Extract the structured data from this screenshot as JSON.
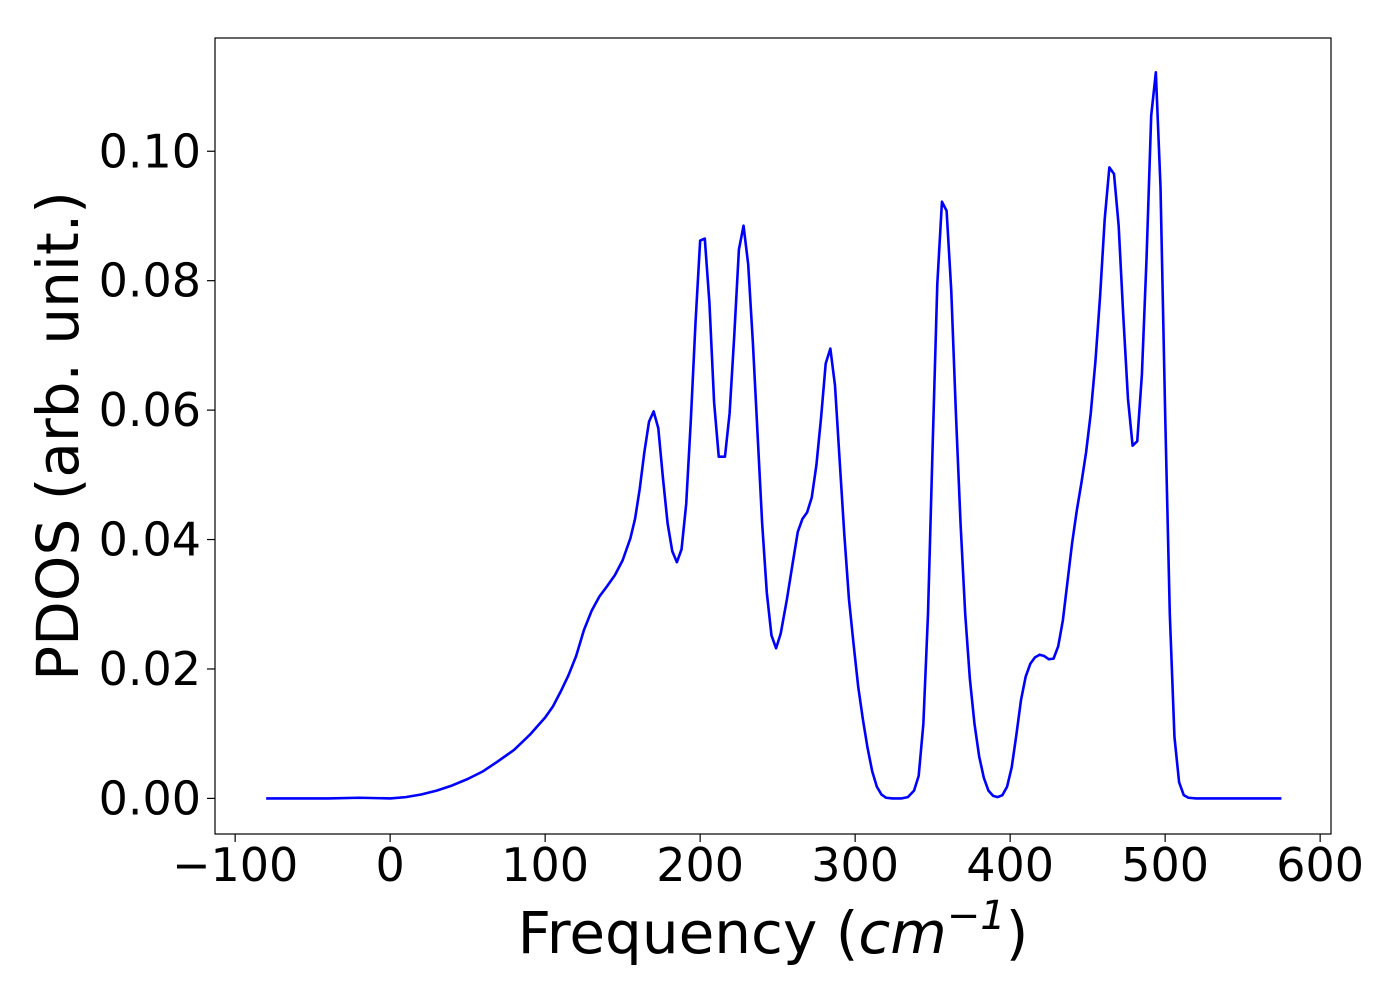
{
  "chart_data": {
    "type": "line",
    "title": "",
    "xlabel": "Frequency (",
    "xlabel_math": "cm",
    "xlabel_sup": "−1",
    "xlabel_close": ")",
    "ylabel": "PDOS (arb. unit.)",
    "xlim": [
      -113,
      607
    ],
    "ylim": [
      -0.0055,
      0.1175
    ],
    "xticks": [
      {
        "value": -100,
        "label": "−100"
      },
      {
        "value": 0,
        "label": "0"
      },
      {
        "value": 100,
        "label": "100"
      },
      {
        "value": 200,
        "label": "200"
      },
      {
        "value": 300,
        "label": "300"
      },
      {
        "value": 400,
        "label": "400"
      },
      {
        "value": 500,
        "label": "500"
      },
      {
        "value": 600,
        "label": "600"
      }
    ],
    "yticks": [
      {
        "value": 0.0,
        "label": "0.00"
      },
      {
        "value": 0.02,
        "label": "0.02"
      },
      {
        "value": 0.04,
        "label": "0.04"
      },
      {
        "value": 0.06,
        "label": "0.06"
      },
      {
        "value": 0.08,
        "label": "0.08"
      },
      {
        "value": 0.1,
        "label": "0.10"
      }
    ],
    "grid": false,
    "series": [
      {
        "color": "#0000ff",
        "points": [
          [
            -80,
            0.0
          ],
          [
            -60,
            0.0
          ],
          [
            -40,
            0.0
          ],
          [
            -20,
            0.0001
          ],
          [
            0,
            0.0
          ],
          [
            10,
            0.0002
          ],
          [
            20,
            0.0006
          ],
          [
            30,
            0.0012
          ],
          [
            40,
            0.002
          ],
          [
            50,
            0.003
          ],
          [
            60,
            0.0042
          ],
          [
            70,
            0.0058
          ],
          [
            80,
            0.0075
          ],
          [
            90,
            0.0098
          ],
          [
            100,
            0.0125
          ],
          [
            105,
            0.0142
          ],
          [
            110,
            0.0165
          ],
          [
            115,
            0.019
          ],
          [
            120,
            0.022
          ],
          [
            125,
            0.026
          ],
          [
            130,
            0.029
          ],
          [
            135,
            0.0312
          ],
          [
            140,
            0.0328
          ],
          [
            145,
            0.0345
          ],
          [
            150,
            0.0368
          ],
          [
            155,
            0.0402
          ],
          [
            158,
            0.0432
          ],
          [
            161,
            0.0478
          ],
          [
            164,
            0.0535
          ],
          [
            167,
            0.0582
          ],
          [
            170,
            0.0598
          ],
          [
            173,
            0.0572
          ],
          [
            176,
            0.0495
          ],
          [
            179,
            0.0425
          ],
          [
            182,
            0.0382
          ],
          [
            185,
            0.0365
          ],
          [
            188,
            0.0385
          ],
          [
            191,
            0.0455
          ],
          [
            194,
            0.0585
          ],
          [
            197,
            0.0735
          ],
          [
            200,
            0.0862
          ],
          [
            203,
            0.0865
          ],
          [
            206,
            0.0765
          ],
          [
            209,
            0.0612
          ],
          [
            212,
            0.0528
          ],
          [
            216,
            0.0528
          ],
          [
            219,
            0.0595
          ],
          [
            222,
            0.0715
          ],
          [
            225,
            0.0848
          ],
          [
            228,
            0.0885
          ],
          [
            231,
            0.0825
          ],
          [
            234,
            0.0705
          ],
          [
            237,
            0.0565
          ],
          [
            240,
            0.0425
          ],
          [
            243,
            0.0318
          ],
          [
            246,
            0.0252
          ],
          [
            249,
            0.0232
          ],
          [
            252,
            0.0255
          ],
          [
            256,
            0.0308
          ],
          [
            260,
            0.0368
          ],
          [
            263,
            0.0412
          ],
          [
            266,
            0.0432
          ],
          [
            269,
            0.0442
          ],
          [
            272,
            0.0465
          ],
          [
            275,
            0.0515
          ],
          [
            278,
            0.0588
          ],
          [
            281,
            0.0672
          ],
          [
            284,
            0.0695
          ],
          [
            287,
            0.0638
          ],
          [
            290,
            0.0522
          ],
          [
            293,
            0.0408
          ],
          [
            296,
            0.0308
          ],
          [
            299,
            0.0238
          ],
          [
            302,
            0.0172
          ],
          [
            305,
            0.0122
          ],
          [
            308,
            0.0078
          ],
          [
            311,
            0.0042
          ],
          [
            314,
            0.0018
          ],
          [
            317,
            0.0006
          ],
          [
            320,
            0.0001
          ],
          [
            324,
            0.0
          ],
          [
            330,
            0.0
          ],
          [
            334,
            0.0002
          ],
          [
            338,
            0.0012
          ],
          [
            341,
            0.0035
          ],
          [
            344,
            0.0115
          ],
          [
            347,
            0.0285
          ],
          [
            350,
            0.0545
          ],
          [
            353,
            0.0795
          ],
          [
            356,
            0.0922
          ],
          [
            359,
            0.0908
          ],
          [
            362,
            0.0785
          ],
          [
            365,
            0.0595
          ],
          [
            368,
            0.0425
          ],
          [
            371,
            0.0285
          ],
          [
            374,
            0.0185
          ],
          [
            377,
            0.0115
          ],
          [
            380,
            0.0065
          ],
          [
            383,
            0.0032
          ],
          [
            386,
            0.0012
          ],
          [
            389,
            0.0004
          ],
          [
            392,
            0.0002
          ],
          [
            395,
            0.0005
          ],
          [
            398,
            0.0018
          ],
          [
            401,
            0.0048
          ],
          [
            404,
            0.0098
          ],
          [
            407,
            0.0152
          ],
          [
            410,
            0.0188
          ],
          [
            413,
            0.0208
          ],
          [
            416,
            0.0218
          ],
          [
            419,
            0.0222
          ],
          [
            422,
            0.022
          ],
          [
            425,
            0.0215
          ],
          [
            428,
            0.0216
          ],
          [
            431,
            0.0235
          ],
          [
            434,
            0.0275
          ],
          [
            437,
            0.0335
          ],
          [
            440,
            0.0395
          ],
          [
            443,
            0.0445
          ],
          [
            446,
            0.0488
          ],
          [
            449,
            0.0535
          ],
          [
            452,
            0.0595
          ],
          [
            455,
            0.0675
          ],
          [
            458,
            0.0775
          ],
          [
            461,
            0.0895
          ],
          [
            464,
            0.0975
          ],
          [
            467,
            0.0965
          ],
          [
            470,
            0.0885
          ],
          [
            473,
            0.0745
          ],
          [
            476,
            0.0618
          ],
          [
            479,
            0.0545
          ],
          [
            482,
            0.0552
          ],
          [
            485,
            0.0655
          ],
          [
            488,
            0.0835
          ],
          [
            491,
            0.1055
          ],
          [
            494,
            0.1122
          ],
          [
            497,
            0.0945
          ],
          [
            500,
            0.0595
          ],
          [
            503,
            0.0285
          ],
          [
            506,
            0.0095
          ],
          [
            509,
            0.0025
          ],
          [
            512,
            0.0005
          ],
          [
            515,
            0.0001
          ],
          [
            520,
            0.0
          ],
          [
            540,
            0.0
          ],
          [
            560,
            0.0
          ],
          [
            575,
            0.0
          ]
        ]
      }
    ]
  }
}
